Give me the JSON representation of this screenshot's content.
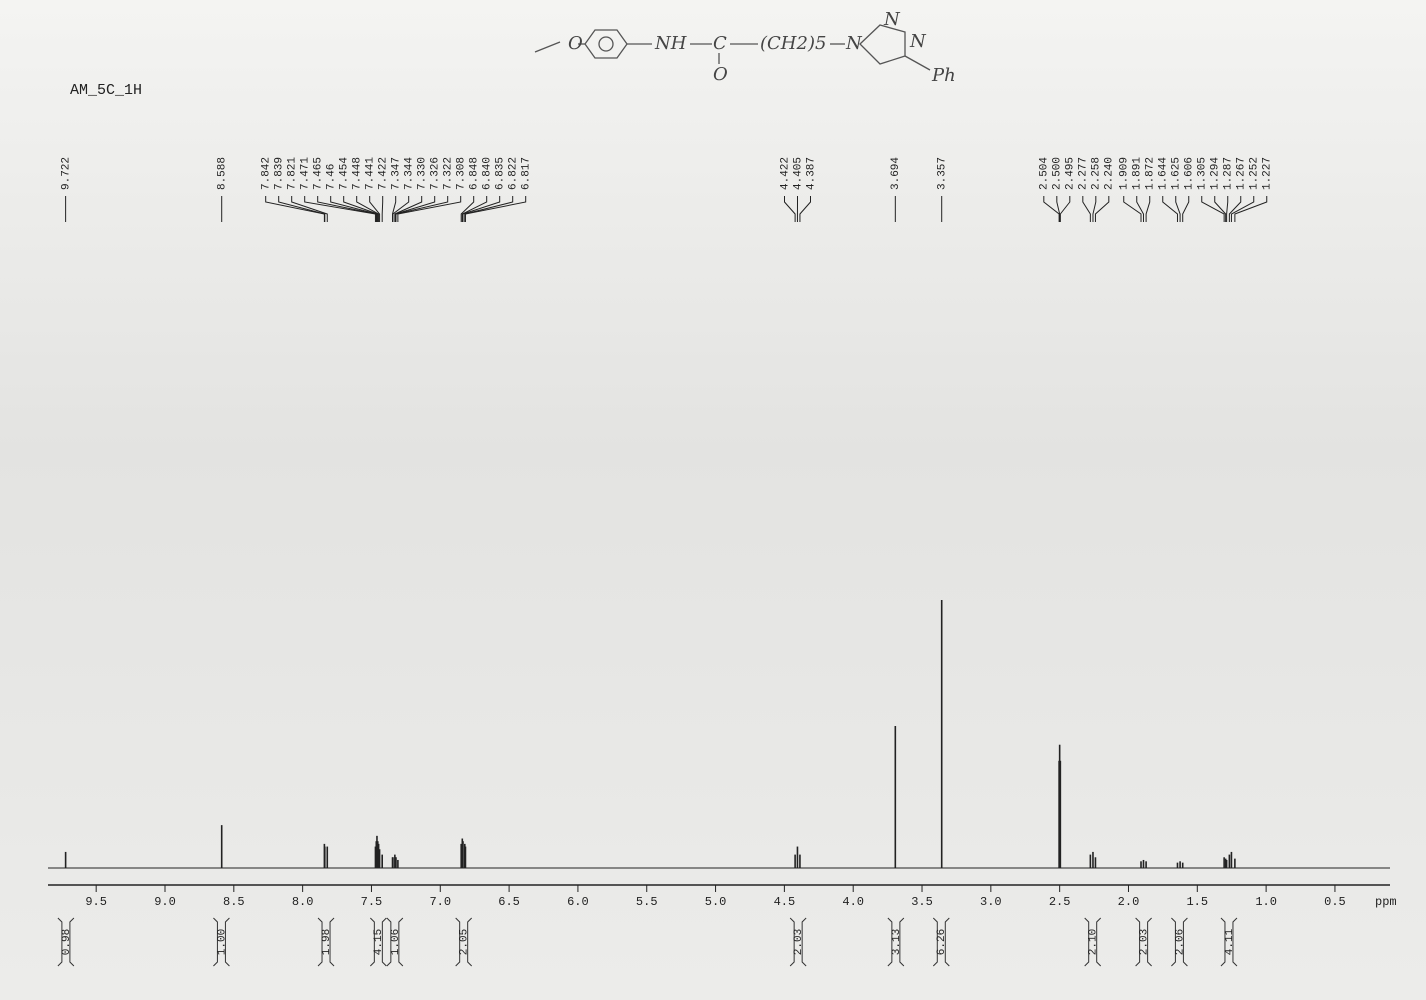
{
  "chart_data": {
    "type": "spectrum",
    "title": "AM_5C_1H",
    "structure": {
      "labels": [
        "O",
        "NH",
        "C",
        "O",
        "(CH2)5",
        "N",
        "N",
        "N",
        "Ph"
      ]
    },
    "x_label": "ppm",
    "xlim": [
      9.85,
      0.1
    ],
    "xticks": [
      9.5,
      {
        "value": 9,
        "label": "9.0"
      },
      8.5,
      {
        "value": 8,
        "label": "8.0"
      },
      7.5,
      {
        "value": 7,
        "label": "7.0"
      },
      6.5,
      {
        "value": 6,
        "label": "6.0"
      },
      5.5,
      {
        "value": 5,
        "label": "5.0"
      },
      4.5,
      {
        "value": 4,
        "label": "4.0"
      },
      3.5,
      {
        "value": 3,
        "label": "3.0"
      },
      2.5,
      {
        "value": 2,
        "label": "2.0"
      },
      1.5,
      {
        "value": 1,
        "label": "1.0"
      },
      0.5
    ],
    "ylim": [
      0,
      100
    ],
    "color": "#222222",
    "peaks": [
      9.722,
      8.588,
      7.842,
      7.839,
      7.821,
      7.471,
      7.465,
      7.46,
      7.454,
      7.448,
      7.441,
      7.422,
      7.347,
      7.344,
      {
        "value": 7.33,
        "label": "7.330"
      },
      7.326,
      7.322,
      7.308,
      6.848,
      {
        "value": 6.84,
        "label": "6.840"
      },
      6.835,
      6.822,
      6.817,
      4.422,
      4.405,
      4.387,
      3.694,
      3.357,
      2.504,
      {
        "value": 2.5,
        "label": "2.500"
      },
      2.495,
      2.277,
      2.258,
      {
        "value": 2.24,
        "label": "2.240"
      },
      1.909,
      1.891,
      1.872,
      1.644,
      1.625,
      1.606,
      1.305,
      1.294,
      1.287,
      1.267,
      1.252,
      1.227
    ],
    "intensities": [
      6,
      16,
      9,
      8,
      8,
      8,
      10,
      12,
      10,
      9,
      7,
      5,
      4,
      4,
      5,
      4,
      4,
      3,
      9,
      11,
      10,
      9,
      8,
      5,
      8,
      5,
      53,
      100,
      40,
      46,
      40,
      5,
      6,
      4,
      2.5,
      3,
      2.5,
      2,
      2.5,
      2,
      4,
      3.5,
      3,
      5,
      6,
      3.5
    ],
    "integrals": {
      "x": [
        9.72,
        8.59,
        7.83,
        7.45,
        7.33,
        6.83,
        4.4,
        3.69,
        3.36,
        2.26,
        1.89,
        1.63,
        1.27
      ],
      "values": [
        0.98,
        {
          "value": 1,
          "label": "1.00"
        },
        1.98,
        4.15,
        1.06,
        2.05,
        2.03,
        3.13,
        6.26,
        {
          "value": 2.1,
          "label": "2.10"
        },
        2.03,
        2.06,
        4.11
      ]
    }
  }
}
